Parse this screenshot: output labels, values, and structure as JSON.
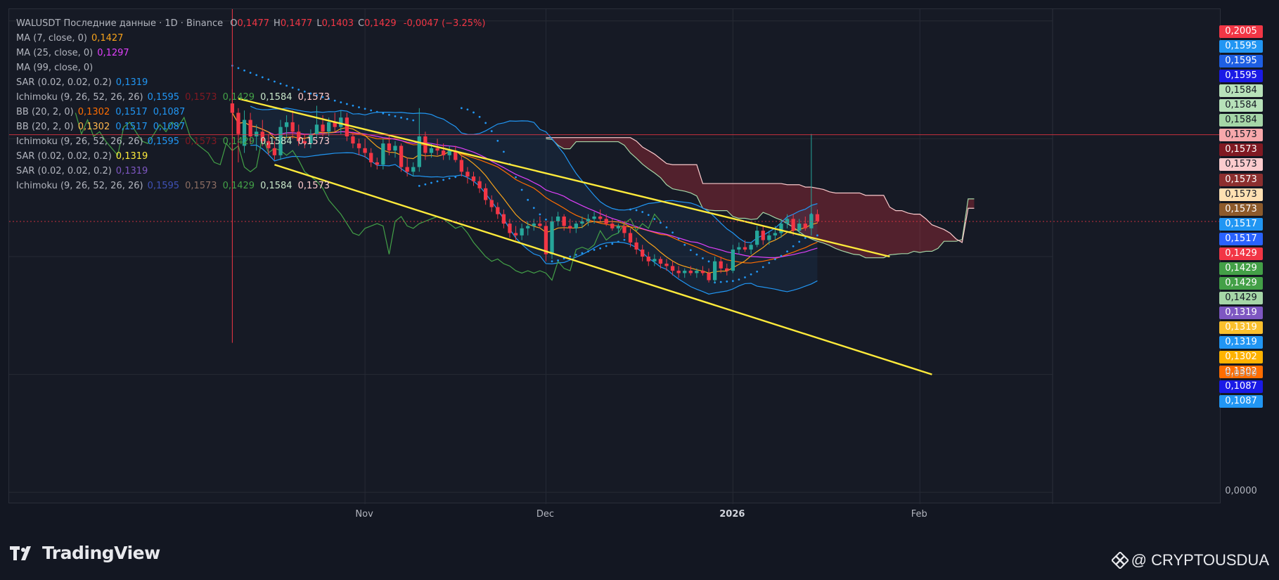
{
  "header": {
    "symbol_line": "WALUSDT Последние данные · 1D · Binance",
    "ohlc": [
      {
        "k": "O",
        "v": "0,1477"
      },
      {
        "k": "H",
        "v": "0,1477"
      },
      {
        "k": "L",
        "v": "0,1403"
      },
      {
        "k": "C",
        "v": "0,1429"
      }
    ],
    "change": "-0,0047 (−3.25%)"
  },
  "legend": [
    {
      "label": "MA (7, close, 0)",
      "values": [
        {
          "t": "0,1427",
          "c": "#f7a21b"
        }
      ]
    },
    {
      "label": "MA (25, close, 0)",
      "values": [
        {
          "t": "0,1297",
          "c": "#e040fb"
        }
      ]
    },
    {
      "label": "MA (99, close, 0)",
      "values": []
    },
    {
      "label": "SAR (0.02, 0.02, 0.2)",
      "values": [
        {
          "t": "0,1319",
          "c": "#2196f3"
        }
      ]
    },
    {
      "label": "Ichimoku (9, 26, 52, 26, 26)",
      "values": [
        {
          "t": "0,1595",
          "c": "#2196f3"
        },
        {
          "t": "0,1573",
          "c": "#801922"
        },
        {
          "t": "0,1429",
          "c": "#43a047"
        },
        {
          "t": "0,1584",
          "c": "#c8e6c9"
        },
        {
          "t": "0,1573",
          "c": "#fccbcd"
        }
      ]
    },
    {
      "label": "BB (20, 2, 0)",
      "values": [
        {
          "t": "0,1302",
          "c": "#ff6d00"
        },
        {
          "t": "0,1517",
          "c": "#2196f3"
        },
        {
          "t": "0,1087",
          "c": "#2196f3"
        }
      ]
    },
    {
      "label": "BB (20, 2, 0)",
      "values": [
        {
          "t": "0,1302",
          "c": "#ffb74d"
        },
        {
          "t": "0,1517",
          "c": "#2196f3"
        },
        {
          "t": "0,1087",
          "c": "#2196f3"
        }
      ]
    },
    {
      "label": "Ichimoku (9, 26, 52, 26, 26)",
      "values": [
        {
          "t": "0,1595",
          "c": "#2196f3"
        },
        {
          "t": "0,1573",
          "c": "#801922"
        },
        {
          "t": "0,1429",
          "c": "#43a047"
        },
        {
          "t": "0,1584",
          "c": "#c8e6c9"
        },
        {
          "t": "0,1573",
          "c": "#fccbcd"
        }
      ]
    },
    {
      "label": "SAR (0.02, 0.02, 0.2)",
      "values": [
        {
          "t": "0,1319",
          "c": "#ffeb3b"
        }
      ]
    },
    {
      "label": "SAR (0.02, 0.02, 0.2)",
      "values": [
        {
          "t": "0,1319",
          "c": "#7e57c2"
        }
      ]
    },
    {
      "label": "Ichimoku (9, 26, 52, 26, 26)",
      "values": [
        {
          "t": "0,1595",
          "c": "#3f51b5"
        },
        {
          "t": "0,1573",
          "c": "#8d6e63"
        },
        {
          "t": "0,1429",
          "c": "#43a047"
        },
        {
          "t": "0,1584",
          "c": "#c8e6c9"
        },
        {
          "t": "0,1573",
          "c": "#fccbcd"
        }
      ]
    }
  ],
  "price_badges": [
    {
      "t": "0,2005",
      "v": 0.2005,
      "c": "#f23645"
    },
    {
      "t": "0,1595",
      "v": 0.1595,
      "c": "#2196f3"
    },
    {
      "t": "0,1595",
      "v": 0.1595,
      "c": "#1e5fe3"
    },
    {
      "t": "0,1595",
      "v": 0.1595,
      "c": "#1a1ae6"
    },
    {
      "t": "0,1584",
      "v": 0.1584,
      "c": "#b7e1b9"
    },
    {
      "t": "0,1584",
      "v": 0.1584,
      "c": "#b7e1b9"
    },
    {
      "t": "0,1584",
      "v": 0.1584,
      "c": "#a5d6a7"
    },
    {
      "t": "0,1573",
      "v": 0.1573,
      "c": "#f7a8ab"
    },
    {
      "t": "0,1573",
      "v": 0.1573,
      "c": "#801922"
    },
    {
      "t": "0,1573",
      "v": 0.1573,
      "c": "#fccbcd"
    },
    {
      "t": "0,1573",
      "v": 0.1573,
      "c": "#8c2f2f"
    },
    {
      "t": "0,1573",
      "v": 0.1573,
      "c": "#ffe0b2"
    },
    {
      "t": "0,1573",
      "v": 0.1573,
      "c": "#8d5a2b"
    },
    {
      "t": "0,1517",
      "v": 0.1517,
      "c": "#2196f3"
    },
    {
      "t": "0,1517",
      "v": 0.1517,
      "c": "#2962ff"
    },
    {
      "t": "0,1429",
      "v": 0.1429,
      "c": "#f23645"
    },
    {
      "t": "0,1429",
      "v": 0.1429,
      "c": "#43a047"
    },
    {
      "t": "0,1429",
      "v": 0.1429,
      "c": "#43a047"
    },
    {
      "t": "0,1429",
      "v": 0.1429,
      "c": "#a5d6a7"
    },
    {
      "t": "0,1319",
      "v": 0.1319,
      "c": "#7e57c2"
    },
    {
      "t": "0,1319",
      "v": 0.1319,
      "c": "#fbc02d"
    },
    {
      "t": "0,1319",
      "v": 0.1319,
      "c": "#2196f3"
    },
    {
      "t": "0,1302",
      "v": 0.1302,
      "c": "#ffb300"
    },
    {
      "t": "0,1302",
      "v": 0.1302,
      "c": "#ff6d00"
    },
    {
      "t": "0,1087",
      "v": 0.1087,
      "c": "#1a1ae6"
    },
    {
      "t": "0,1087",
      "v": 0.1087,
      "c": "#2196f3"
    }
  ],
  "chart_data": {
    "type": "candlestick",
    "symbol": "WALUSDT",
    "timeframe": "1D",
    "exchange": "Binance",
    "y_ticks": [
      {
        "t": "0,0500",
        "v": 0.05
      },
      {
        "t": "0,0000",
        "v": 0.0
      }
    ],
    "ylim": [
      -0.005,
      0.205
    ],
    "x_ticks": [
      {
        "t": "Nov",
        "date": "2025-11-01",
        "bold": false
      },
      {
        "t": "Dec",
        "date": "2025-12-01",
        "bold": false
      },
      {
        "t": "2026",
        "date": "2026-01-01",
        "bold": true
      },
      {
        "t": "Feb",
        "date": "2026-02-01",
        "bold": false
      }
    ],
    "xlim": [
      "2025-09-03",
      "2026-02-23"
    ],
    "candles": [
      {
        "date": "2025-10-10",
        "o": 0.165,
        "h": 0.171,
        "l": 0.13,
        "c": 0.161
      },
      {
        "date": "2025-10-11",
        "o": 0.161,
        "h": 0.163,
        "l": 0.14,
        "c": 0.152
      },
      {
        "date": "2025-10-12",
        "o": 0.147,
        "h": 0.162,
        "l": 0.144,
        "c": 0.158
      },
      {
        "date": "2025-10-13",
        "o": 0.158,
        "h": 0.161,
        "l": 0.148,
        "c": 0.151
      },
      {
        "date": "2025-10-14",
        "o": 0.151,
        "h": 0.156,
        "l": 0.145,
        "c": 0.153
      },
      {
        "date": "2025-10-15",
        "o": 0.153,
        "h": 0.158,
        "l": 0.147,
        "c": 0.149
      },
      {
        "date": "2025-10-16",
        "o": 0.149,
        "h": 0.152,
        "l": 0.143,
        "c": 0.146
      },
      {
        "date": "2025-10-17",
        "o": 0.146,
        "h": 0.149,
        "l": 0.141,
        "c": 0.143
      },
      {
        "date": "2025-10-18",
        "o": 0.143,
        "h": 0.158,
        "l": 0.141,
        "c": 0.155
      },
      {
        "date": "2025-10-19",
        "o": 0.155,
        "h": 0.16,
        "l": 0.15,
        "c": 0.157
      },
      {
        "date": "2025-10-20",
        "o": 0.157,
        "h": 0.162,
        "l": 0.15,
        "c": 0.153
      },
      {
        "date": "2025-10-21",
        "o": 0.153,
        "h": 0.156,
        "l": 0.147,
        "c": 0.149
      },
      {
        "date": "2025-10-22",
        "o": 0.149,
        "h": 0.152,
        "l": 0.146,
        "c": 0.148
      },
      {
        "date": "2025-10-23",
        "o": 0.148,
        "h": 0.154,
        "l": 0.146,
        "c": 0.152
      },
      {
        "date": "2025-10-24",
        "o": 0.152,
        "h": 0.164,
        "l": 0.15,
        "c": 0.156
      },
      {
        "date": "2025-10-25",
        "o": 0.156,
        "h": 0.16,
        "l": 0.151,
        "c": 0.153
      },
      {
        "date": "2025-10-26",
        "o": 0.153,
        "h": 0.159,
        "l": 0.151,
        "c": 0.157
      },
      {
        "date": "2025-10-27",
        "o": 0.157,
        "h": 0.161,
        "l": 0.153,
        "c": 0.155
      },
      {
        "date": "2025-10-28",
        "o": 0.155,
        "h": 0.162,
        "l": 0.152,
        "c": 0.159
      },
      {
        "date": "2025-10-29",
        "o": 0.159,
        "h": 0.161,
        "l": 0.149,
        "c": 0.151
      },
      {
        "date": "2025-10-30",
        "o": 0.151,
        "h": 0.153,
        "l": 0.146,
        "c": 0.148
      },
      {
        "date": "2025-10-31",
        "o": 0.148,
        "h": 0.15,
        "l": 0.143,
        "c": 0.146
      },
      {
        "date": "2025-11-01",
        "o": 0.146,
        "h": 0.15,
        "l": 0.142,
        "c": 0.144
      },
      {
        "date": "2025-11-02",
        "o": 0.144,
        "h": 0.146,
        "l": 0.138,
        "c": 0.14
      },
      {
        "date": "2025-11-03",
        "o": 0.14,
        "h": 0.142,
        "l": 0.137,
        "c": 0.139
      },
      {
        "date": "2025-11-04",
        "o": 0.139,
        "h": 0.15,
        "l": 0.137,
        "c": 0.148
      },
      {
        "date": "2025-11-05",
        "o": 0.148,
        "h": 0.151,
        "l": 0.143,
        "c": 0.145
      },
      {
        "date": "2025-11-06",
        "o": 0.145,
        "h": 0.149,
        "l": 0.142,
        "c": 0.147
      },
      {
        "date": "2025-11-07",
        "o": 0.147,
        "h": 0.148,
        "l": 0.136,
        "c": 0.138
      },
      {
        "date": "2025-11-08",
        "o": 0.138,
        "h": 0.142,
        "l": 0.134,
        "c": 0.136
      },
      {
        "date": "2025-11-09",
        "o": 0.136,
        "h": 0.14,
        "l": 0.134,
        "c": 0.138
      },
      {
        "date": "2025-11-10",
        "o": 0.138,
        "h": 0.163,
        "l": 0.136,
        "c": 0.151
      },
      {
        "date": "2025-11-11",
        "o": 0.151,
        "h": 0.153,
        "l": 0.141,
        "c": 0.144
      },
      {
        "date": "2025-11-12",
        "o": 0.144,
        "h": 0.148,
        "l": 0.142,
        "c": 0.146
      },
      {
        "date": "2025-11-13",
        "o": 0.146,
        "h": 0.15,
        "l": 0.143,
        "c": 0.145
      },
      {
        "date": "2025-11-14",
        "o": 0.145,
        "h": 0.148,
        "l": 0.141,
        "c": 0.143
      },
      {
        "date": "2025-11-15",
        "o": 0.143,
        "h": 0.147,
        "l": 0.141,
        "c": 0.145
      },
      {
        "date": "2025-11-16",
        "o": 0.145,
        "h": 0.147,
        "l": 0.14,
        "c": 0.141
      },
      {
        "date": "2025-11-17",
        "o": 0.141,
        "h": 0.143,
        "l": 0.134,
        "c": 0.136
      },
      {
        "date": "2025-11-18",
        "o": 0.136,
        "h": 0.138,
        "l": 0.131,
        "c": 0.134
      },
      {
        "date": "2025-11-19",
        "o": 0.134,
        "h": 0.136,
        "l": 0.13,
        "c": 0.132
      },
      {
        "date": "2025-11-20",
        "o": 0.132,
        "h": 0.134,
        "l": 0.127,
        "c": 0.129
      },
      {
        "date": "2025-11-21",
        "o": 0.129,
        "h": 0.131,
        "l": 0.122,
        "c": 0.124
      },
      {
        "date": "2025-11-22",
        "o": 0.124,
        "h": 0.126,
        "l": 0.119,
        "c": 0.121
      },
      {
        "date": "2025-11-23",
        "o": 0.121,
        "h": 0.123,
        "l": 0.116,
        "c": 0.118
      },
      {
        "date": "2025-11-24",
        "o": 0.118,
        "h": 0.12,
        "l": 0.112,
        "c": 0.114
      },
      {
        "date": "2025-11-25",
        "o": 0.114,
        "h": 0.116,
        "l": 0.108,
        "c": 0.11
      },
      {
        "date": "2025-11-26",
        "o": 0.11,
        "h": 0.113,
        "l": 0.107,
        "c": 0.109
      },
      {
        "date": "2025-11-27",
        "o": 0.109,
        "h": 0.114,
        "l": 0.107,
        "c": 0.112
      },
      {
        "date": "2025-11-28",
        "o": 0.112,
        "h": 0.115,
        "l": 0.109,
        "c": 0.113
      },
      {
        "date": "2025-11-29",
        "o": 0.113,
        "h": 0.116,
        "l": 0.111,
        "c": 0.114
      },
      {
        "date": "2025-11-30",
        "o": 0.114,
        "h": 0.117,
        "l": 0.112,
        "c": 0.113
      },
      {
        "date": "2025-12-01",
        "o": 0.113,
        "h": 0.115,
        "l": 0.098,
        "c": 0.101
      },
      {
        "date": "2025-12-02",
        "o": 0.101,
        "h": 0.117,
        "l": 0.099,
        "c": 0.115
      },
      {
        "date": "2025-12-03",
        "o": 0.115,
        "h": 0.119,
        "l": 0.113,
        "c": 0.117
      },
      {
        "date": "2025-12-04",
        "o": 0.117,
        "h": 0.118,
        "l": 0.111,
        "c": 0.113
      },
      {
        "date": "2025-12-05",
        "o": 0.113,
        "h": 0.116,
        "l": 0.11,
        "c": 0.112
      },
      {
        "date": "2025-12-06",
        "o": 0.112,
        "h": 0.115,
        "l": 0.11,
        "c": 0.114
      },
      {
        "date": "2025-12-07",
        "o": 0.114,
        "h": 0.117,
        "l": 0.112,
        "c": 0.115
      },
      {
        "date": "2025-12-08",
        "o": 0.115,
        "h": 0.118,
        "l": 0.113,
        "c": 0.116
      },
      {
        "date": "2025-12-09",
        "o": 0.116,
        "h": 0.119,
        "l": 0.114,
        "c": 0.117
      },
      {
        "date": "2025-12-10",
        "o": 0.117,
        "h": 0.12,
        "l": 0.115,
        "c": 0.116
      },
      {
        "date": "2025-12-11",
        "o": 0.116,
        "h": 0.118,
        "l": 0.113,
        "c": 0.114
      },
      {
        "date": "2025-12-12",
        "o": 0.114,
        "h": 0.116,
        "l": 0.111,
        "c": 0.112
      },
      {
        "date": "2025-12-13",
        "o": 0.112,
        "h": 0.114,
        "l": 0.11,
        "c": 0.113
      },
      {
        "date": "2025-12-14",
        "o": 0.113,
        "h": 0.115,
        "l": 0.108,
        "c": 0.11
      },
      {
        "date": "2025-12-15",
        "o": 0.11,
        "h": 0.112,
        "l": 0.104,
        "c": 0.106
      },
      {
        "date": "2025-12-16",
        "o": 0.106,
        "h": 0.108,
        "l": 0.101,
        "c": 0.103
      },
      {
        "date": "2025-12-17",
        "o": 0.103,
        "h": 0.105,
        "l": 0.098,
        "c": 0.1
      },
      {
        "date": "2025-12-18",
        "o": 0.1,
        "h": 0.102,
        "l": 0.096,
        "c": 0.098
      },
      {
        "date": "2025-12-19",
        "o": 0.098,
        "h": 0.101,
        "l": 0.096,
        "c": 0.099
      },
      {
        "date": "2025-12-20",
        "o": 0.099,
        "h": 0.1,
        "l": 0.095,
        "c": 0.097
      },
      {
        "date": "2025-12-21",
        "o": 0.097,
        "h": 0.099,
        "l": 0.094,
        "c": 0.096
      },
      {
        "date": "2025-12-22",
        "o": 0.096,
        "h": 0.098,
        "l": 0.092,
        "c": 0.094
      },
      {
        "date": "2025-12-23",
        "o": 0.094,
        "h": 0.096,
        "l": 0.091,
        "c": 0.093
      },
      {
        "date": "2025-12-24",
        "o": 0.093,
        "h": 0.095,
        "l": 0.091,
        "c": 0.094
      },
      {
        "date": "2025-12-25",
        "o": 0.094,
        "h": 0.096,
        "l": 0.092,
        "c": 0.093
      },
      {
        "date": "2025-12-26",
        "o": 0.093,
        "h": 0.095,
        "l": 0.091,
        "c": 0.094
      },
      {
        "date": "2025-12-27",
        "o": 0.094,
        "h": 0.096,
        "l": 0.092,
        "c": 0.093
      },
      {
        "date": "2025-12-28",
        "o": 0.093,
        "h": 0.095,
        "l": 0.089,
        "c": 0.09
      },
      {
        "date": "2025-12-29",
        "o": 0.09,
        "h": 0.1,
        "l": 0.089,
        "c": 0.098
      },
      {
        "date": "2025-12-30",
        "o": 0.098,
        "h": 0.1,
        "l": 0.093,
        "c": 0.095
      },
      {
        "date": "2025-12-31",
        "o": 0.095,
        "h": 0.097,
        "l": 0.092,
        "c": 0.094
      },
      {
        "date": "2026-01-01",
        "o": 0.094,
        "h": 0.105,
        "l": 0.093,
        "c": 0.103
      },
      {
        "date": "2026-01-02",
        "o": 0.103,
        "h": 0.106,
        "l": 0.101,
        "c": 0.104
      },
      {
        "date": "2026-01-03",
        "o": 0.104,
        "h": 0.107,
        "l": 0.102,
        "c": 0.103
      },
      {
        "date": "2026-01-04",
        "o": 0.103,
        "h": 0.106,
        "l": 0.101,
        "c": 0.105
      },
      {
        "date": "2026-01-05",
        "o": 0.105,
        "h": 0.113,
        "l": 0.104,
        "c": 0.111
      },
      {
        "date": "2026-01-06",
        "o": 0.111,
        "h": 0.113,
        "l": 0.105,
        "c": 0.107
      },
      {
        "date": "2026-01-07",
        "o": 0.107,
        "h": 0.111,
        "l": 0.105,
        "c": 0.109
      },
      {
        "date": "2026-01-08",
        "o": 0.109,
        "h": 0.113,
        "l": 0.107,
        "c": 0.11
      },
      {
        "date": "2026-01-09",
        "o": 0.11,
        "h": 0.116,
        "l": 0.108,
        "c": 0.114
      },
      {
        "date": "2026-01-10",
        "o": 0.114,
        "h": 0.118,
        "l": 0.112,
        "c": 0.116
      },
      {
        "date": "2026-01-11",
        "o": 0.116,
        "h": 0.118,
        "l": 0.109,
        "c": 0.111
      },
      {
        "date": "2026-01-12",
        "o": 0.111,
        "h": 0.116,
        "l": 0.109,
        "c": 0.114
      },
      {
        "date": "2026-01-13",
        "o": 0.114,
        "h": 0.117,
        "l": 0.111,
        "c": 0.112
      },
      {
        "date": "2026-01-14",
        "o": 0.112,
        "h": 0.152,
        "l": 0.109,
        "c": 0.118
      },
      {
        "date": "2026-01-15",
        "o": 0.118,
        "h": 0.12,
        "l": 0.114,
        "c": 0.115
      }
    ],
    "annotations": [
      {
        "kind": "trendline",
        "name": "channel-upper",
        "color": "#ffeb3b",
        "x1": "2025-10-11",
        "y1": 0.167,
        "x2": "2026-01-27",
        "y2": 0.1
      },
      {
        "kind": "trendline",
        "name": "channel-lower",
        "color": "#ffeb3b",
        "x1": "2025-10-17",
        "y1": 0.139,
        "x2": "2026-02-03",
        "y2": 0.05
      },
      {
        "kind": "hline",
        "name": "red-level",
        "color": "#f23645",
        "y": 0.1517
      },
      {
        "kind": "hline",
        "name": "last-price-dotted",
        "color": "#f23645",
        "y": 0.1149
      },
      {
        "kind": "vline",
        "name": "crosshair",
        "color": "#f23645",
        "x": "2025-10-10"
      }
    ]
  },
  "branding": {
    "logo_text": "TradingView",
    "author": "@ CRYPTOUSDUA"
  }
}
